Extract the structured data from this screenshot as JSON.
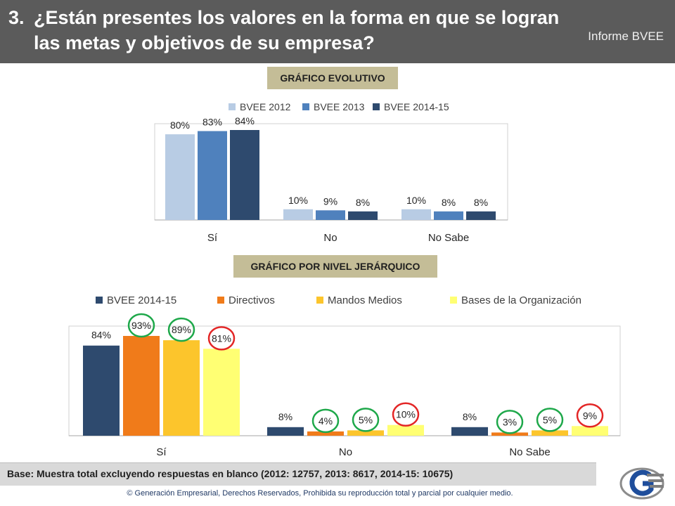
{
  "header": {
    "number": "3.",
    "question_line1": "¿Están presentes los valores en la forma en que se logran",
    "question_line2": "las metas y objetivos de su empresa?",
    "brand": "Informe BVEE"
  },
  "sections": {
    "evolutivo": "GRÁFICO EVOLUTIVO",
    "jerarquico": "GRÁFICO POR NIVEL JERÁRQUICO"
  },
  "chart_data": [
    {
      "type": "bar",
      "title": "GRÁFICO EVOLUTIVO",
      "categories": [
        "Sí",
        "No",
        "No Sabe"
      ],
      "series": [
        {
          "name": "BVEE 2012",
          "color": "#b8cce4",
          "values": [
            80,
            10,
            10
          ],
          "labels": [
            "80%",
            "10%",
            "10%"
          ]
        },
        {
          "name": "BVEE 2013",
          "color": "#4f81bd",
          "values": [
            83,
            9,
            8
          ],
          "labels": [
            "83%",
            "9%",
            "8%"
          ]
        },
        {
          "name": "BVEE 2014-15",
          "color": "#2e4a6e",
          "values": [
            84,
            8,
            8
          ],
          "labels": [
            "84%",
            "8%",
            "8%"
          ]
        }
      ],
      "ylim": [
        0,
        84
      ],
      "legend": "top",
      "grid": false
    },
    {
      "type": "bar",
      "title": "GRÁFICO POR NIVEL JERÁRQUICO",
      "categories": [
        "Sí",
        "No",
        "No Sabe"
      ],
      "series": [
        {
          "name": "BVEE 2014-15",
          "color": "#2e4a6e",
          "values": [
            84,
            8,
            8
          ],
          "labels": [
            "84%",
            "8%",
            "8%"
          ]
        },
        {
          "name": "Directivos",
          "color": "#f07b1a",
          "values": [
            93,
            4,
            3
          ],
          "labels": [
            "93%",
            "4%",
            "3%"
          ]
        },
        {
          "name": "Mandos Medios",
          "color": "#fcc52c",
          "values": [
            89,
            5,
            5
          ],
          "labels": [
            "89%",
            "5%",
            "5%"
          ]
        },
        {
          "name": "Bases de la Organización",
          "color": "#ffff73",
          "values": [
            81,
            10,
            9
          ],
          "labels": [
            "81%",
            "10%",
            "9%"
          ]
        }
      ],
      "ylim": [
        0,
        93
      ],
      "legend": "top",
      "grid": false,
      "highlights": [
        {
          "series": "Directivos",
          "category": "Sí",
          "color": "#1ea84a"
        },
        {
          "series": "Mandos Medios",
          "category": "Sí",
          "color": "#1ea84a"
        },
        {
          "series": "Bases de la Organización",
          "category": "Sí",
          "color": "#e32626"
        },
        {
          "series": "Directivos",
          "category": "No",
          "color": "#1ea84a"
        },
        {
          "series": "Mandos Medios",
          "category": "No",
          "color": "#1ea84a"
        },
        {
          "series": "Bases de la Organización",
          "category": "No",
          "color": "#e32626"
        },
        {
          "series": "Directivos",
          "category": "No Sabe",
          "color": "#1ea84a"
        },
        {
          "series": "Mandos Medios",
          "category": "No Sabe",
          "color": "#1ea84a"
        },
        {
          "series": "Bases de la Organización",
          "category": "No Sabe",
          "color": "#e32626"
        }
      ]
    }
  ],
  "footer": {
    "base_note": "Base:  Muestra total excluyendo respuestas en blanco (2012: 12757, 2013: 8617, 2014-15: 10675)",
    "copyright": "© Generación Empresarial, Derechos Reservados, Prohibida su reproducción total y parcial por cualquier medio."
  },
  "logo": {
    "icon": "ge-logo-icon",
    "colors": [
      "#1f4e9c",
      "#7f7f7f"
    ]
  }
}
